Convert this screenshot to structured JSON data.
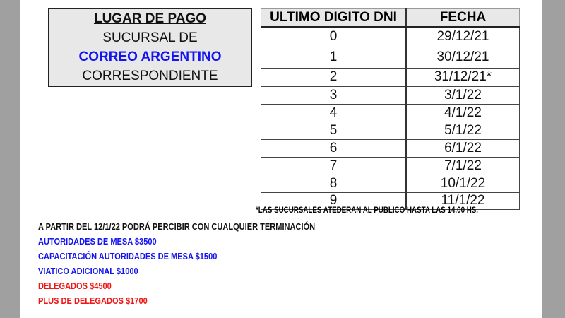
{
  "colors": {
    "blue": "#1414f0",
    "red": "#f01414",
    "gray_border": "#a0a0a0",
    "header_bg": "#e8e8e8"
  },
  "lugar": {
    "title": "LUGAR DE PAGO",
    "line1": "SUCURSAL DE",
    "line2": "CORREO ARGENTINO",
    "line3": "CORRESPONDIENTE"
  },
  "table": {
    "headers": [
      "ULTIMO DIGITO DNI",
      "FECHA"
    ],
    "rows": [
      [
        "0",
        "29/12/21"
      ],
      [
        "1",
        "30/12/21"
      ],
      [
        "2",
        "31/12/21*"
      ],
      [
        "3",
        "3/1/22"
      ],
      [
        "4",
        "4/1/22"
      ],
      [
        "5",
        "5/1/22"
      ],
      [
        "6",
        "6/1/22"
      ],
      [
        "7",
        "7/1/22"
      ],
      [
        "8",
        "10/1/22"
      ],
      [
        "9",
        "11/1/22"
      ]
    ]
  },
  "footnote": "*LAS SUCURSALES ATEDERÁN AL PÚBLICO HASTA LAS 14.00 HS.",
  "lines": [
    {
      "text": "A PARTIR DEL 12/1/22 PODRÁ PERCIBIR CON CUALQUIER TERMINACIÓN",
      "color": "#111111"
    },
    {
      "text": "AUTORIDADES DE MESA $3500",
      "color": "#1414f0"
    },
    {
      "text": "CAPACITACIÓN AUTORIDADES DE MESA $1500",
      "color": "#1414f0"
    },
    {
      "text": "VIATICO ADICIONAL $1000",
      "color": "#1414f0"
    },
    {
      "text": "DELEGADOS $4500",
      "color": "#f01414"
    },
    {
      "text": "PLUS DE DELEGADOS $1700",
      "color": "#f01414"
    }
  ]
}
